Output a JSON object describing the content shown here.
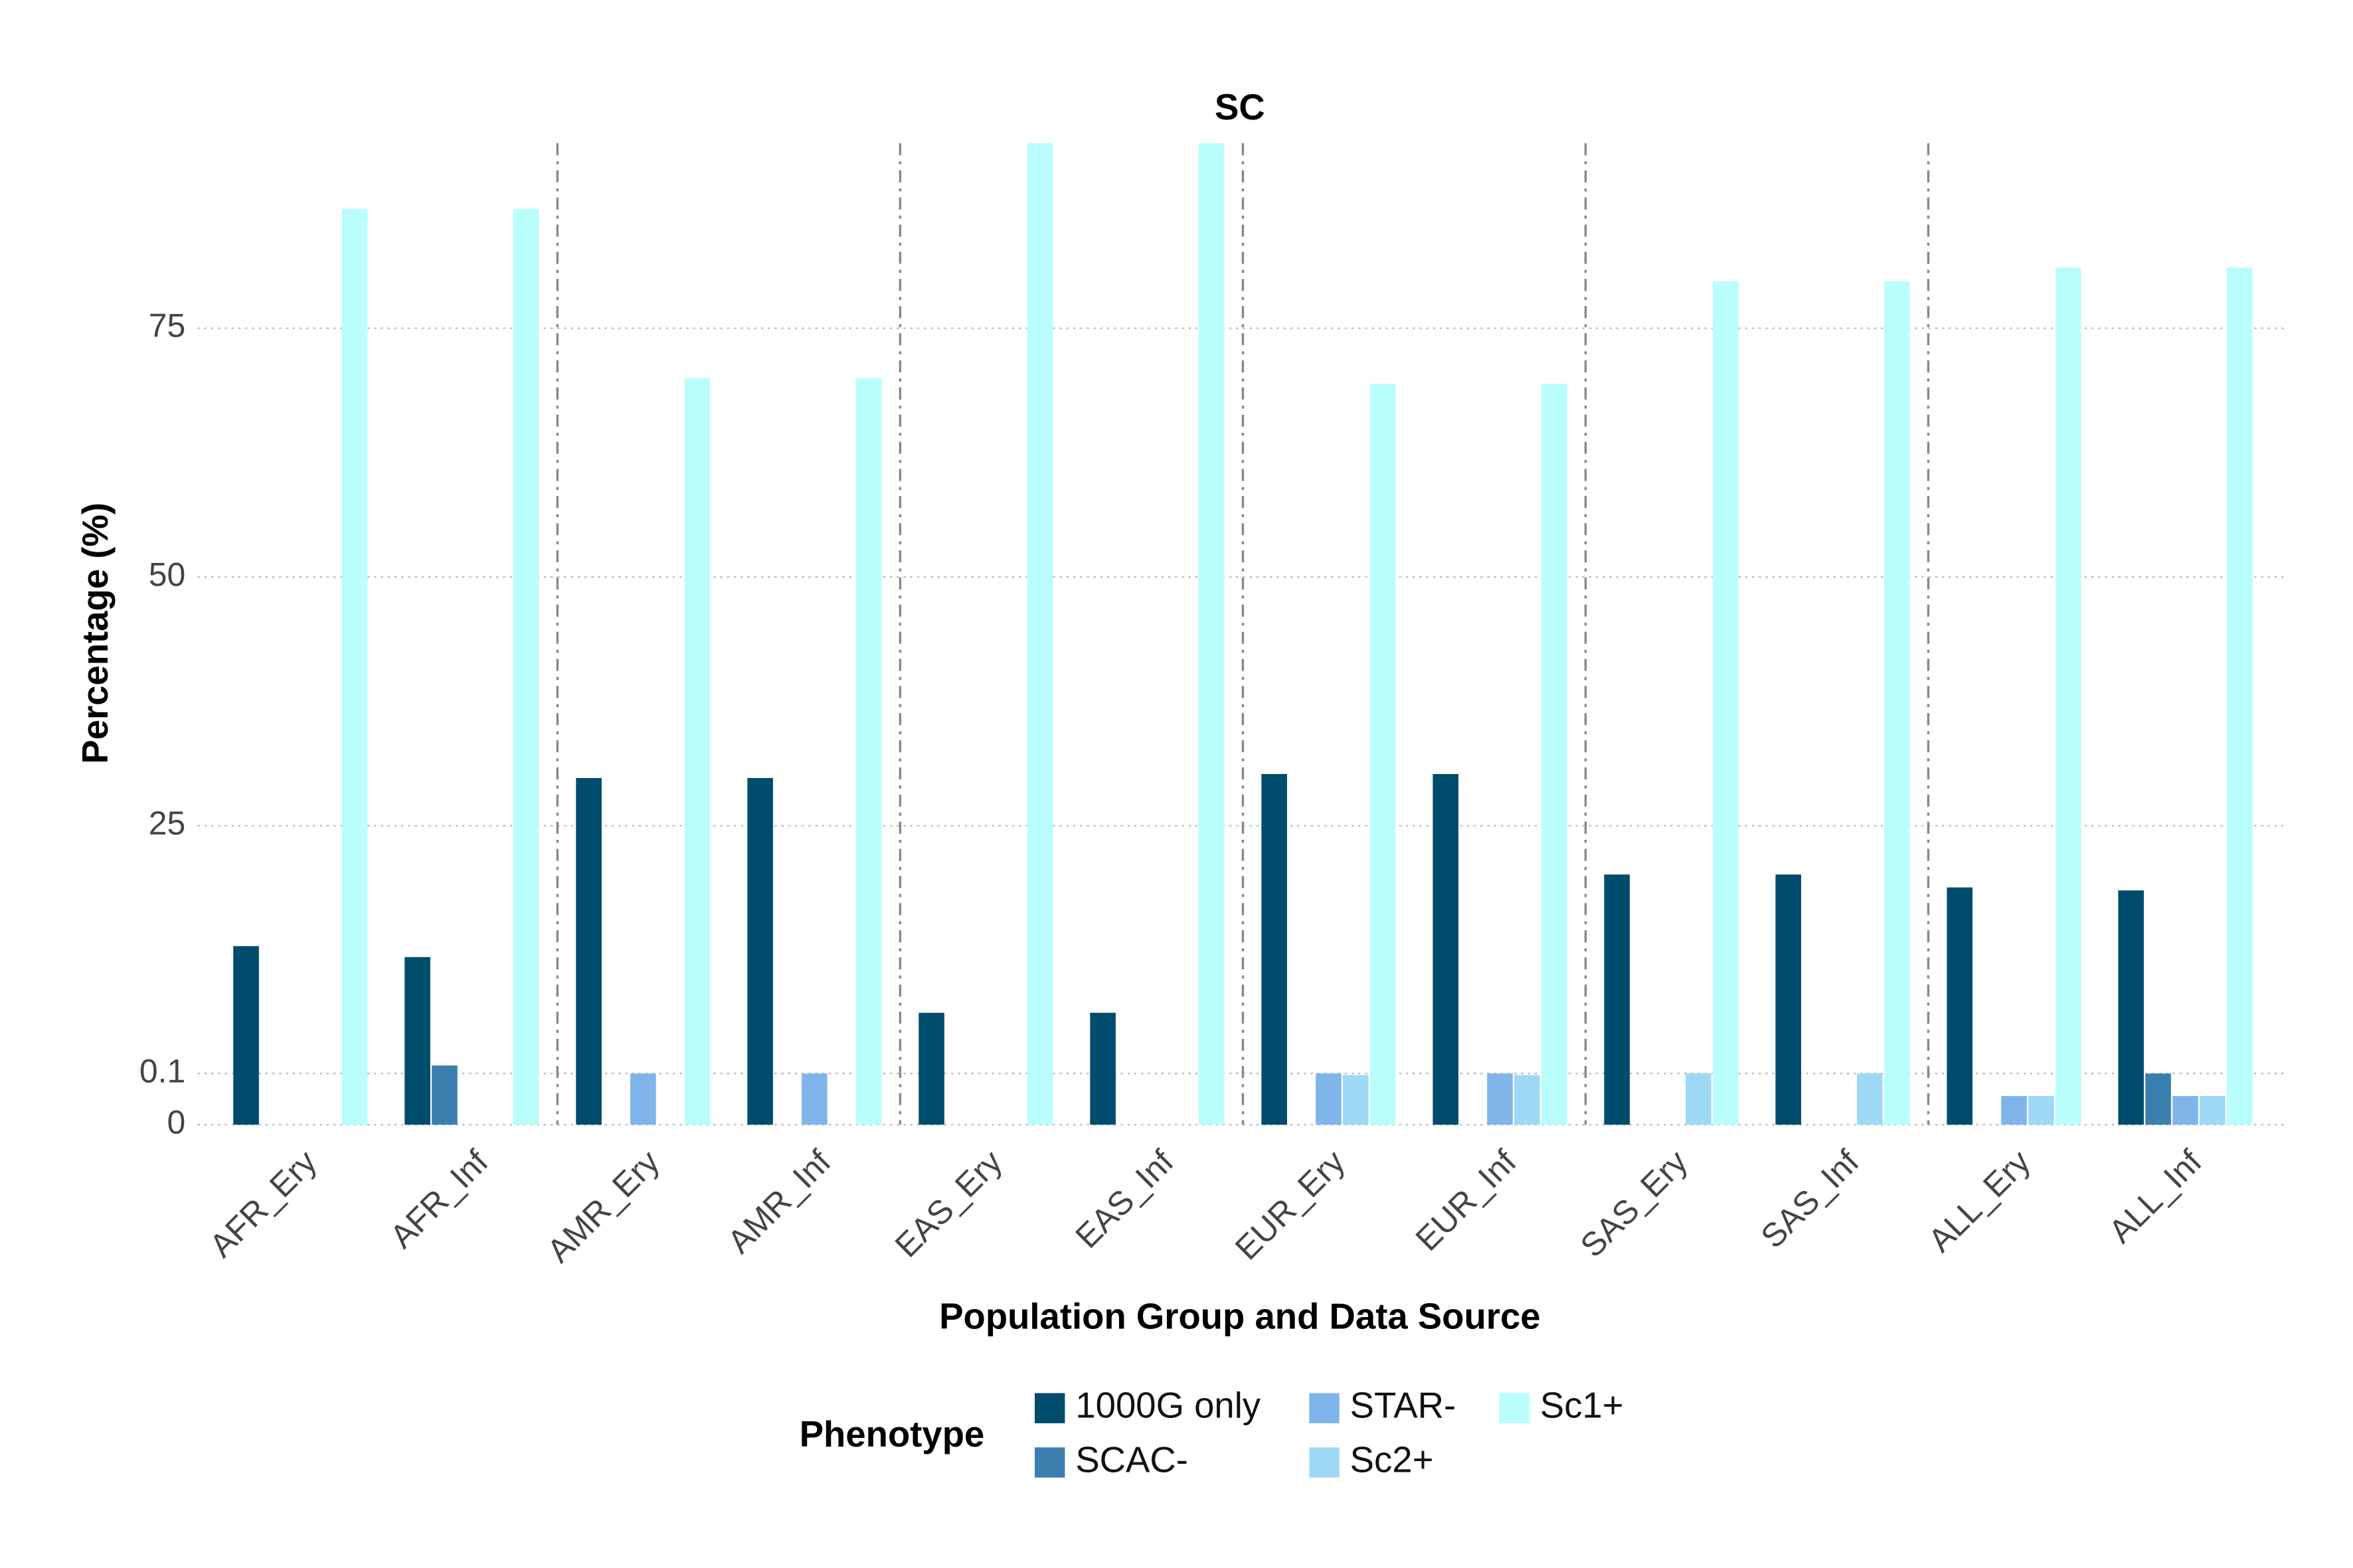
{
  "chart_data": {
    "type": "bar",
    "title": "SC",
    "x_label": "Population Group and Data Source",
    "y_label": "Percentage (%)",
    "categories": [
      "AFR_Ery",
      "AFR_Inf",
      "AMR_Ery",
      "AMR_Inf",
      "EAS_Ery",
      "EAS_Inf",
      "EUR_Ery",
      "EUR_Inf",
      "SAS_Ery",
      "SAS_Inf",
      "ALL_Ery",
      "ALL_Inf"
    ],
    "series": [
      {
        "name": "1000G only",
        "color": "#004c6d",
        "values": [
          12.9,
          11.8,
          29.8,
          29.8,
          6.2,
          6.2,
          30.2,
          30.2,
          20.1,
          20.1,
          18.8,
          18.5
        ]
      },
      {
        "name": "SCAC-",
        "color": "#3b7fb0",
        "values": [
          0,
          0.9,
          0,
          0,
          0,
          0,
          0,
          0,
          0,
          0,
          0,
          0.1
        ]
      },
      {
        "name": "STAR-",
        "color": "#7fb5ea",
        "values": [
          0,
          0,
          0.1,
          0.1,
          0,
          0,
          0.1,
          0.1,
          0,
          0,
          0.056,
          0.056
        ]
      },
      {
        "name": "Sc2+",
        "color": "#9dd9f5",
        "values": [
          0,
          0,
          0,
          0,
          0,
          0,
          0.097,
          0.097,
          0.1,
          0.1,
          0.056,
          0.056
        ]
      },
      {
        "name": "Sc1+",
        "color": "#b9fdfd",
        "values": [
          87.0,
          87.0,
          70.0,
          70.0,
          93.6,
          93.6,
          69.4,
          69.4,
          79.7,
          79.7,
          81.1,
          81.1
        ]
      }
    ],
    "ylim": [
      0,
      93.6
    ],
    "yticks": [
      0,
      0.1,
      25,
      50,
      75
    ],
    "grid": true,
    "legend_title": "Phenotype",
    "legend_position": "bottom"
  }
}
